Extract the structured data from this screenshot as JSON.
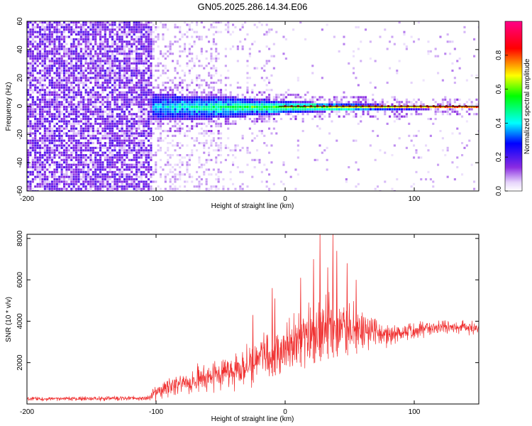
{
  "title": "GN05.2025.286.14.34.E06",
  "colors": {
    "background": "#ffffff",
    "axis": "#000000",
    "snr_line": "#f03030",
    "spectrogram_noise": "#7a35e8",
    "ridge": "#e02828"
  },
  "chart_data": [
    {
      "type": "heatmap",
      "title": "GN05.2025.286.14.34.E06",
      "xlabel": "Height of straight line (km)",
      "ylabel": "Frequency (Hz)",
      "xlim": [
        -200,
        150
      ],
      "ylim": [
        -60,
        60
      ],
      "xticks": [
        -200,
        -100,
        0,
        100
      ],
      "xtick_labels": [
        "-200",
        "-100",
        "0",
        "100"
      ],
      "yticks": [
        60,
        40,
        20,
        0,
        -20,
        -40,
        -60
      ],
      "ytick_labels": [
        "60",
        "40",
        "20",
        "0",
        "-20",
        "-40",
        "-60"
      ],
      "colorbar": {
        "label": "Normalized spectral amplitude",
        "range": [
          0,
          1
        ],
        "ticks": [
          0.0,
          0.2,
          0.4,
          0.6,
          0.8
        ],
        "tick_labels": [
          "0.0",
          "0.2",
          "0.4",
          "0.6",
          "0.8"
        ],
        "colormap": [
          "#ffffff",
          "#8a2be2",
          "#0000ff",
          "#00ffff",
          "#00ff00",
          "#ffff00",
          "#ff0000",
          "#ff00aa"
        ]
      },
      "features": {
        "noise_region_x": [
          -200,
          -103
        ],
        "signal_band": {
          "x": [
            -103,
            -60,
            -30,
            0,
            30,
            60,
            90,
            120,
            150
          ],
          "half_width_hz": [
            9,
            8.5,
            6.5,
            4.5,
            3.2,
            2.2,
            1.6,
            1.4,
            1.3
          ]
        },
        "ridge_frequency_hz": 0
      }
    },
    {
      "type": "line",
      "xlabel": "Height of straight line (km)",
      "ylabel": "SNR (10 * v/v)",
      "xlim": [
        -200,
        150
      ],
      "ylim": [
        0,
        8200
      ],
      "xticks": [
        -200,
        -100,
        0,
        100
      ],
      "xtick_labels": [
        "-200",
        "-100",
        "0",
        "100"
      ],
      "yticks": [
        2000,
        4000,
        6000,
        8000
      ],
      "ytick_labels": [
        "2000",
        "4000",
        "6000",
        "8000"
      ],
      "series": [
        {
          "name": "SNR",
          "color": "#f03030",
          "x": [
            -200,
            -180,
            -160,
            -140,
            -120,
            -105,
            -100,
            -90,
            -80,
            -70,
            -60,
            -50,
            -40,
            -30,
            -20,
            -10,
            0,
            10,
            20,
            30,
            40,
            50,
            60,
            70,
            80,
            90,
            100,
            110,
            120,
            130,
            140,
            150
          ],
          "values": [
            250,
            260,
            250,
            270,
            280,
            300,
            550,
            800,
            1000,
            1150,
            1300,
            1450,
            1650,
            1850,
            2100,
            2450,
            2800,
            3100,
            3350,
            3600,
            3750,
            3650,
            3550,
            3500,
            3400,
            3400,
            3550,
            3650,
            3750,
            3750,
            3700,
            3650
          ],
          "noise_amplitude": [
            150,
            150,
            150,
            150,
            150,
            200,
            500,
            700,
            800,
            850,
            900,
            1000,
            1150,
            1300,
            1450,
            1600,
            1750,
            1900,
            2000,
            2050,
            2000,
            1700,
            1300,
            1000,
            800,
            650,
            550,
            500,
            450,
            450,
            450,
            450
          ],
          "peaks": [
            {
              "x": -25,
              "y": 4300
            },
            {
              "x": -10,
              "y": 5600
            },
            {
              "x": -8,
              "y": 5100
            },
            {
              "x": 12,
              "y": 6100
            },
            {
              "x": 22,
              "y": 7000
            },
            {
              "x": 27,
              "y": 8200
            },
            {
              "x": 33,
              "y": 6600
            },
            {
              "x": 37,
              "y": 8200
            },
            {
              "x": 40,
              "y": 7400
            },
            {
              "x": 48,
              "y": 6800
            },
            {
              "x": 55,
              "y": 6000
            }
          ]
        }
      ]
    }
  ]
}
